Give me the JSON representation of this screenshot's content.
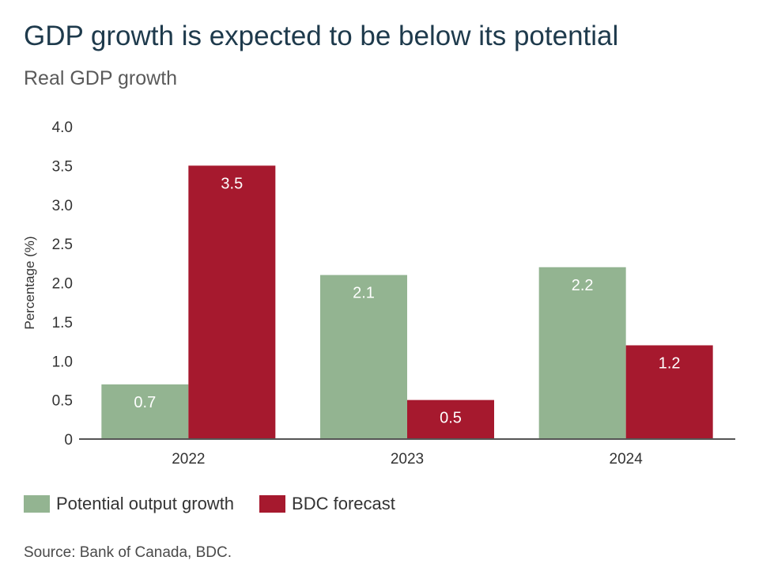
{
  "header": {
    "title": "GDP growth is expected to be below its potential",
    "subtitle": "Real GDP growth"
  },
  "chart_data": {
    "type": "bar",
    "title": "GDP growth is expected to be below its potential",
    "subtitle": "Real GDP growth",
    "ylabel": "Percentage (%)",
    "xlabel": "",
    "categories": [
      "2022",
      "2023",
      "2024"
    ],
    "ylim": [
      0,
      4.0
    ],
    "yticks": [
      "0",
      "0.5",
      "1.0",
      "1.5",
      "2.0",
      "2.5",
      "3.0",
      "3.5",
      "4.0"
    ],
    "grid": false,
    "legend_position": "bottom-left",
    "series": [
      {
        "name": "Potential output growth",
        "color": "#93b491",
        "values": [
          0.7,
          2.1,
          2.2
        ],
        "labels": [
          "0.7",
          "2.1",
          "2.2"
        ]
      },
      {
        "name": "BDC forecast",
        "color": "#a6192e",
        "values": [
          3.5,
          0.5,
          1.2
        ],
        "labels": [
          "3.5",
          "0.5",
          "1.2"
        ]
      }
    ]
  },
  "footer": {
    "source": "Source: Bank of Canada, BDC."
  }
}
